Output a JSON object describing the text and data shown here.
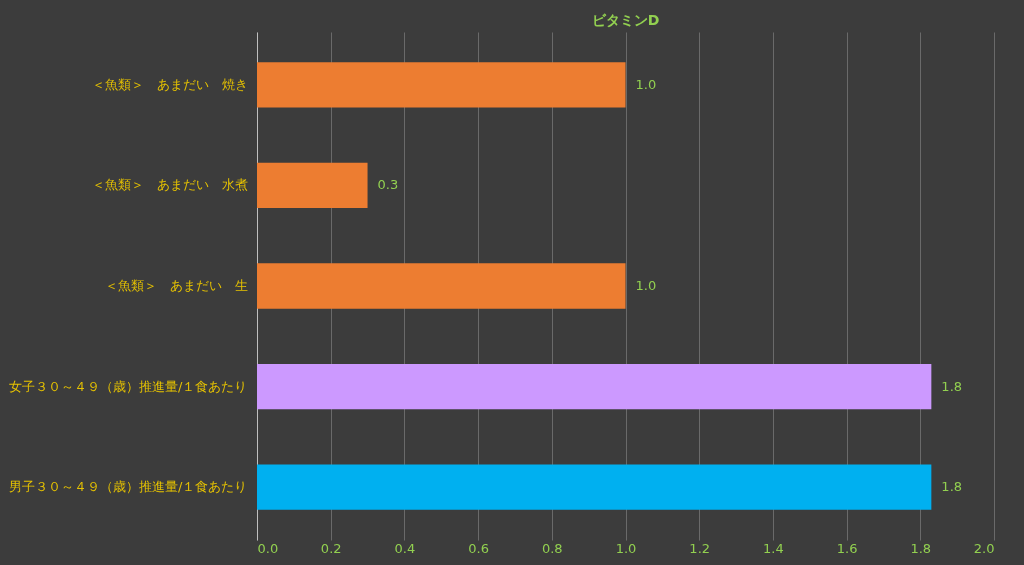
{
  "chart_data": {
    "type": "bar",
    "orientation": "horizontal",
    "title": "ビタミンD",
    "categories": [
      "＜魚類＞　あまだい　焼き",
      "＜魚類＞　あまだい　水煮",
      "＜魚類＞　あまだい　生",
      "女子３０～４９（歳）推進量/１食あたり",
      "男子３０～４９（歳）推進量/１食あたり"
    ],
    "values": [
      1.0,
      0.3,
      1.0,
      1.83,
      1.83
    ],
    "colors": [
      "#ed7d31",
      "#ed7d31",
      "#ed7d31",
      "#cc99ff",
      "#00b0f0"
    ],
    "value_labels": [
      "1.0",
      "0.3",
      "1.0",
      "1.8",
      "1.8"
    ],
    "xlim": [
      0,
      2
    ],
    "xticks": [
      {
        "value": 0,
        "label": "0.0"
      },
      {
        "value": 0.2,
        "label": "0.2"
      },
      {
        "value": 0.4,
        "label": "0.4"
      },
      {
        "value": 0.6,
        "label": "0.6"
      },
      {
        "value": 0.8,
        "label": "0.8"
      },
      {
        "value": 1,
        "label": "1.0"
      },
      {
        "value": 1.2,
        "label": "1.2"
      },
      {
        "value": 1.4,
        "label": "1.4"
      },
      {
        "value": 1.6,
        "label": "1.6"
      },
      {
        "value": 1.8,
        "label": "1.8"
      },
      {
        "value": 2,
        "label": "2.0"
      }
    ],
    "grid": "x"
  }
}
